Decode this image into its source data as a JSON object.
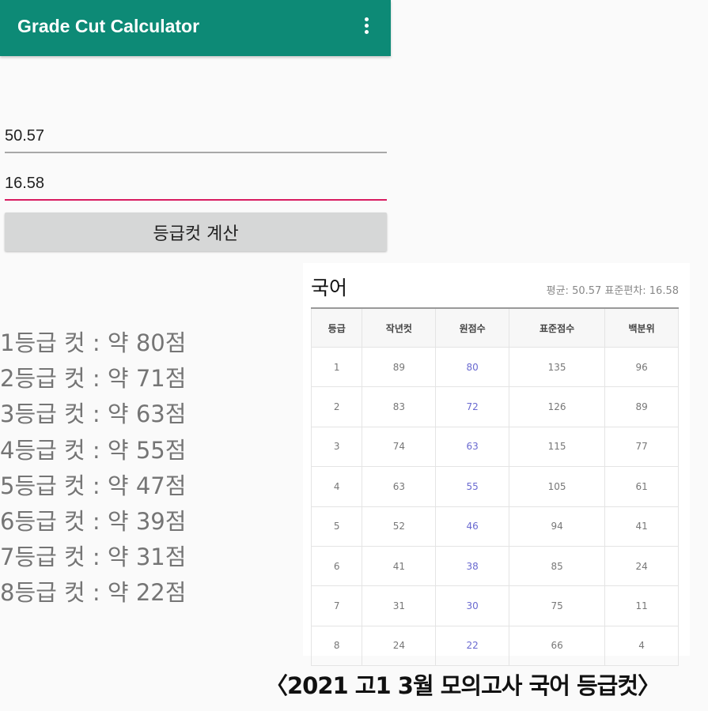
{
  "appbar": {
    "title": "Grade Cut Calculator",
    "menu_icon": "more-vert-icon"
  },
  "colors": {
    "appbar": "#0d8a76",
    "focused_underline": "#d81b60",
    "raw_score": "#6a6ad0"
  },
  "form": {
    "mean_value": "50.57",
    "stddev_value": "16.58",
    "calculate_label": "등급컷 계산"
  },
  "results": [
    "1등급 컷 : 약 80점",
    "2등급 컷 : 약 71점",
    "3등급 컷 : 약 63점",
    "4등급 컷 : 약 55점",
    "5등급 컷 : 약 47점",
    "6등급 컷 : 약 39점",
    "7등급 컷 : 약 31점",
    "8등급 컷 : 약 22점"
  ],
  "reference": {
    "subject": "국어",
    "stats": "평균: 50.57 표준편차: 16.58",
    "headers": [
      "등급",
      "작년컷",
      "원점수",
      "표준점수",
      "백분위"
    ],
    "rows": [
      [
        "1",
        "89",
        "80",
        "135",
        "96"
      ],
      [
        "2",
        "83",
        "72",
        "126",
        "89"
      ],
      [
        "3",
        "74",
        "63",
        "115",
        "77"
      ],
      [
        "4",
        "63",
        "55",
        "105",
        "61"
      ],
      [
        "5",
        "52",
        "46",
        "94",
        "41"
      ],
      [
        "6",
        "41",
        "38",
        "85",
        "24"
      ],
      [
        "7",
        "31",
        "30",
        "75",
        "11"
      ],
      [
        "8",
        "24",
        "22",
        "66",
        "4"
      ]
    ],
    "caption": "〈2021 고1 3월 모의고사 국어 등급컷〉"
  }
}
